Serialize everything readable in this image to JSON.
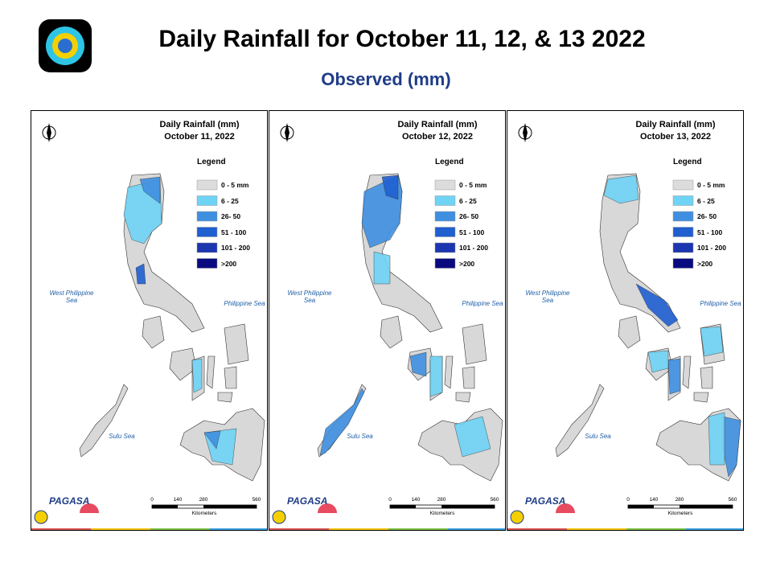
{
  "header": {
    "title": "Daily Rainfall for October 11, 12, & 13 2022",
    "subtitle": "Observed (mm)"
  },
  "panels": [
    {
      "title": "Daily Rainfall (mm)",
      "date": "October 11, 2022",
      "legend_title": "Legend",
      "legend": [
        {
          "label": "0 - 5 mm",
          "color": "#dcdcdc"
        },
        {
          "label": "6 - 25",
          "color": "#6fd3f5"
        },
        {
          "label": "26- 50",
          "color": "#3f8fe0"
        },
        {
          "label": "51 - 100",
          "color": "#1f5fd0"
        },
        {
          "label": "101 - 200",
          "color": "#1c35b0"
        },
        {
          "label": ">200",
          "color": "#0a0a80"
        }
      ],
      "seas": [
        "West Philippine Sea",
        "Philippine Sea",
        "Sulu Sea"
      ],
      "scale": [
        "0",
        "140",
        "280",
        "560"
      ],
      "scale_unit": "Kilometers",
      "brand": "PAGASA"
    },
    {
      "title": "Daily Rainfall (mm)",
      "date": "October 12, 2022",
      "legend_title": "Legend",
      "legend": [
        {
          "label": "0 - 5 mm",
          "color": "#dcdcdc"
        },
        {
          "label": "6 - 25",
          "color": "#6fd3f5"
        },
        {
          "label": "26- 50",
          "color": "#3f8fe0"
        },
        {
          "label": "51 - 100",
          "color": "#1f5fd0"
        },
        {
          "label": "101 - 200",
          "color": "#1c35b0"
        },
        {
          "label": ">200",
          "color": "#0a0a80"
        }
      ],
      "seas": [
        "West Philippine Sea",
        "Philippine Sea",
        "Sulu Sea"
      ],
      "scale": [
        "0",
        "140",
        "280",
        "560"
      ],
      "scale_unit": "Kilometers",
      "brand": "PAGASA"
    },
    {
      "title": "Daily Rainfall (mm)",
      "date": "October 13, 2022",
      "legend_title": "Legend",
      "legend": [
        {
          "label": "0 - 5 mm",
          "color": "#dcdcdc"
        },
        {
          "label": "6 - 25",
          "color": "#6fd3f5"
        },
        {
          "label": "26- 50",
          "color": "#3f8fe0"
        },
        {
          "label": "51 - 100",
          "color": "#1f5fd0"
        },
        {
          "label": "101 - 200",
          "color": "#1c35b0"
        },
        {
          "label": ">200",
          "color": "#0a0a80"
        }
      ],
      "seas": [
        "West Philippine Sea",
        "Philippine Sea",
        "Sulu Sea"
      ],
      "scale": [
        "0",
        "140",
        "280",
        "560"
      ],
      "scale_unit": "Kilometers",
      "brand": "PAGASA"
    }
  ]
}
